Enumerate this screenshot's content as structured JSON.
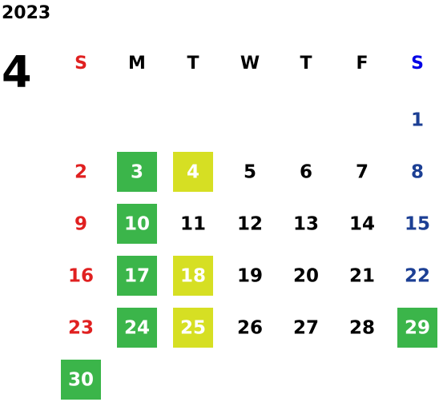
{
  "year": "2023",
  "month": "4",
  "weekdays": [
    "S",
    "M",
    "T",
    "W",
    "T",
    "F",
    "S"
  ],
  "colors": {
    "text": "#000000",
    "sunday": "#e02020",
    "saturday": "#1c3f94",
    "saturday_header": "#0000e6",
    "highlight_text": "#ffffff",
    "green": "#3bb54a",
    "yellow": "#d6df23"
  },
  "weeks": [
    [
      null,
      null,
      null,
      null,
      null,
      null,
      {
        "day": 1
      }
    ],
    [
      {
        "day": 2
      },
      {
        "day": 3,
        "highlight": "green"
      },
      {
        "day": 4,
        "highlight": "yellow"
      },
      {
        "day": 5
      },
      {
        "day": 6
      },
      {
        "day": 7
      },
      {
        "day": 8
      }
    ],
    [
      {
        "day": 9
      },
      {
        "day": 10,
        "highlight": "green"
      },
      {
        "day": 11
      },
      {
        "day": 12
      },
      {
        "day": 13
      },
      {
        "day": 14
      },
      {
        "day": 15
      }
    ],
    [
      {
        "day": 16
      },
      {
        "day": 17,
        "highlight": "green"
      },
      {
        "day": 18,
        "highlight": "yellow"
      },
      {
        "day": 19
      },
      {
        "day": 20
      },
      {
        "day": 21
      },
      {
        "day": 22
      }
    ],
    [
      {
        "day": 23
      },
      {
        "day": 24,
        "highlight": "green"
      },
      {
        "day": 25,
        "highlight": "yellow"
      },
      {
        "day": 26
      },
      {
        "day": 27
      },
      {
        "day": 28
      },
      {
        "day": 29,
        "highlight": "green"
      }
    ],
    [
      {
        "day": 30,
        "highlight": "green"
      },
      null,
      null,
      null,
      null,
      null,
      null
    ]
  ]
}
